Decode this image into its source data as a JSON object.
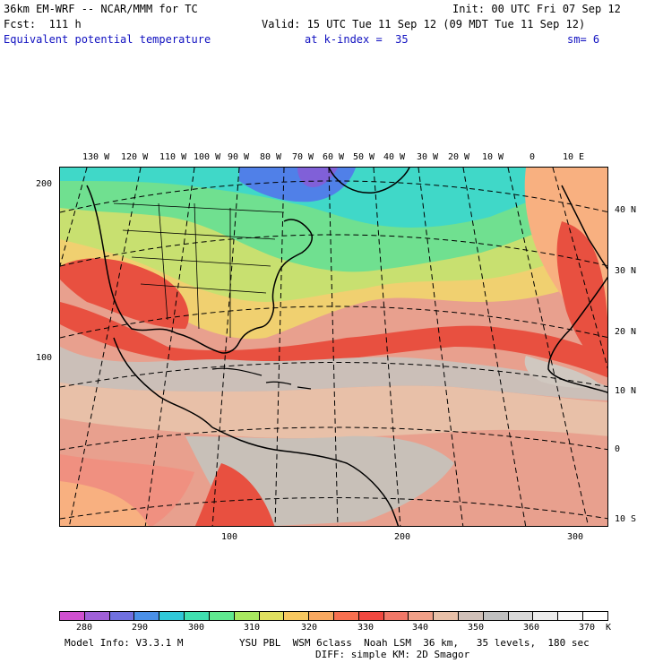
{
  "header": {
    "model_title": "36km EM-WRF -- NCAR/MMM for TC",
    "init": "Init: 00 UTC Fri 07 Sep 12",
    "forecast": "Fcst:  111 h",
    "valid": "Valid: 15 UTC Tue 11 Sep 12 (09 MDT Tue 11 Sep 12)",
    "field": "Equivalent potential temperature",
    "level": "at k-index =  35",
    "smooth": "sm= 6"
  },
  "map": {
    "top_lon_labels": [
      "130 W",
      "120 W",
      "110 W",
      "100 W",
      "90 W",
      "80 W",
      "70 W",
      "60 W",
      "50 W",
      "40 W",
      "30 W",
      "20 W",
      "10 W",
      "0",
      "10 E"
    ],
    "right_lat_labels": [
      "40 N",
      "30 N",
      "20 N",
      "10 N",
      "0",
      "10 S"
    ],
    "left_grid_labels": [
      "200",
      "100"
    ],
    "bottom_grid_labels": [
      "100",
      "200",
      "300"
    ],
    "colors": {
      "ocean_warm": "#e8a08e",
      "tropical_grey": "#cbbfb8",
      "tan": "#e8c0a8",
      "salmon": "#f09080",
      "red": "#e85040",
      "orange": "#f8b080",
      "yellow": "#f0d070",
      "lime": "#c8e070",
      "green": "#70e090",
      "cyan": "#40d8c8",
      "blue": "#5080e8",
      "purple": "#8060d8",
      "land_line": "#000000"
    }
  },
  "colorbar": {
    "colors": [
      "#d050d0",
      "#a060d8",
      "#7070e0",
      "#4a90e8",
      "#30c8d8",
      "#40e0b0",
      "#60e890",
      "#a8e860",
      "#e0e060",
      "#f8c860",
      "#f8a860",
      "#f87050",
      "#f04840",
      "#f07868",
      "#f0a088",
      "#e8c0a8",
      "#d0c0b8",
      "#c0c0c0",
      "#d8d8d8",
      "#ececec",
      "#f8f8f8",
      "#ffffff"
    ],
    "labels": [
      "280",
      "290",
      "300",
      "310",
      "320",
      "330",
      "340",
      "350",
      "360",
      "370"
    ],
    "unit": "K"
  },
  "footer": {
    "model_info": "Model Info: V3.3.1 M",
    "physics": "YSU PBL  WSM 6class  Noah LSM  36 km,   35 levels,  180 sec",
    "diffusion": "DIFF: simple KM: 2D Smagor"
  }
}
